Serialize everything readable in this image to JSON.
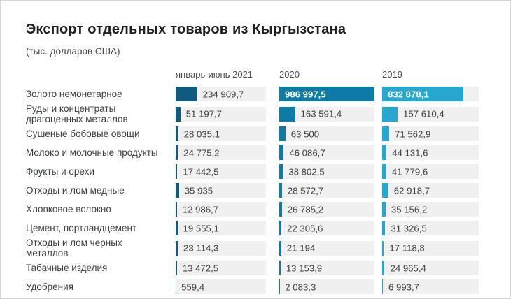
{
  "page": {
    "title": "Экспорт отдельных товаров из Кыргызстана",
    "subtitle": "(тыс. долларов США)"
  },
  "chart": {
    "columns": [
      "январь-июнь 2021",
      "2020",
      "2019"
    ],
    "series_colors": [
      "#0F5A7E",
      "#0C7BA6",
      "#25A7D0"
    ],
    "track_color": "#F0F0F1",
    "max_value": 986997.5,
    "rows": [
      {
        "label": "Золото немонетарное",
        "values": [
          234909.7,
          986997.5,
          832878.1
        ],
        "display": [
          "234 909,7",
          "986 997,5",
          "832 878,1"
        ]
      },
      {
        "label": "Руды и концентраты драгоценных металлов",
        "values": [
          51197.7,
          163591.4,
          157610.4
        ],
        "display": [
          "51 197,7",
          "163 591,4",
          "157 610,4"
        ]
      },
      {
        "label": "Сушеные бобовые овощи",
        "values": [
          28035.1,
          63500,
          71562.9
        ],
        "display": [
          "28 035,1",
          "63 500",
          "71 562,9"
        ]
      },
      {
        "label": "Молоко и молочные продукты",
        "values": [
          24775.2,
          46086.7,
          44131.6
        ],
        "display": [
          "24 775,2",
          "46 086,7",
          "44 131,6"
        ]
      },
      {
        "label": "Фрукты и орехи",
        "values": [
          17442.5,
          38802.5,
          41779.6
        ],
        "display": [
          "17 442,5",
          "38 802,5",
          "41 779,6"
        ]
      },
      {
        "label": "Отходы и лом медные",
        "values": [
          35935,
          28572.7,
          62918.7
        ],
        "display": [
          "35 935",
          "28 572,7",
          "62 918,7"
        ]
      },
      {
        "label": "Хлопковое волокно",
        "values": [
          12986.7,
          26785.2,
          35156.2
        ],
        "display": [
          "12 986,7",
          "26 785,2",
          "35 156,2"
        ]
      },
      {
        "label": "Цемент, портландцемент",
        "values": [
          19555.1,
          22305.6,
          31326.5
        ],
        "display": [
          "19 555,1",
          "22 305,6",
          "31 326,5"
        ]
      },
      {
        "label": "Отходы и лом черных металлов",
        "values": [
          23114.3,
          21194,
          17118.8
        ],
        "display": [
          "23 114,3",
          "21 194",
          "17 118,8"
        ]
      },
      {
        "label": "Табачные изделия",
        "values": [
          13472.5,
          13153.9,
          24965.4
        ],
        "display": [
          "13 472,5",
          "13 153,9",
          "24 965,4"
        ]
      },
      {
        "label": "Удобрения",
        "values": [
          559.4,
          2083.3,
          6993.7
        ],
        "display": [
          "559,4",
          "2 083,3",
          "6 993,7"
        ]
      }
    ]
  },
  "chart_data": {
    "type": "bar",
    "orientation": "horizontal",
    "title": "Экспорт отдельных товаров из Кыргызстана",
    "subtitle": "(тыс. долларов США)",
    "categories": [
      "Золото немонетарное",
      "Руды и концентраты драгоценных металлов",
      "Сушеные бобовые овощи",
      "Молоко и молочные продукты",
      "Фрукты и орехи",
      "Отходы и лом медные",
      "Хлопковое волокно",
      "Цемент, портландцемент",
      "Отходы и лом черных металлов",
      "Табачные изделия",
      "Удобрения"
    ],
    "series": [
      {
        "name": "январь-июнь 2021",
        "color": "#0F5A7E",
        "values": [
          234909.7,
          51197.7,
          28035.1,
          24775.2,
          17442.5,
          35935,
          12986.7,
          19555.1,
          23114.3,
          13472.5,
          559.4
        ]
      },
      {
        "name": "2020",
        "color": "#0C7BA6",
        "values": [
          986997.5,
          163591.4,
          63500,
          46086.7,
          38802.5,
          28572.7,
          26785.2,
          22305.6,
          21194,
          13153.9,
          2083.3
        ]
      },
      {
        "name": "2019",
        "color": "#25A7D0",
        "values": [
          832878.1,
          157610.4,
          71562.9,
          44131.6,
          41779.6,
          62918.7,
          35156.2,
          31326.5,
          17118.8,
          24965.4,
          6993.7
        ]
      }
    ],
    "xlim": [
      0,
      986997.5
    ],
    "grid": false,
    "legend_position": "column-headers",
    "value_labels": true
  }
}
